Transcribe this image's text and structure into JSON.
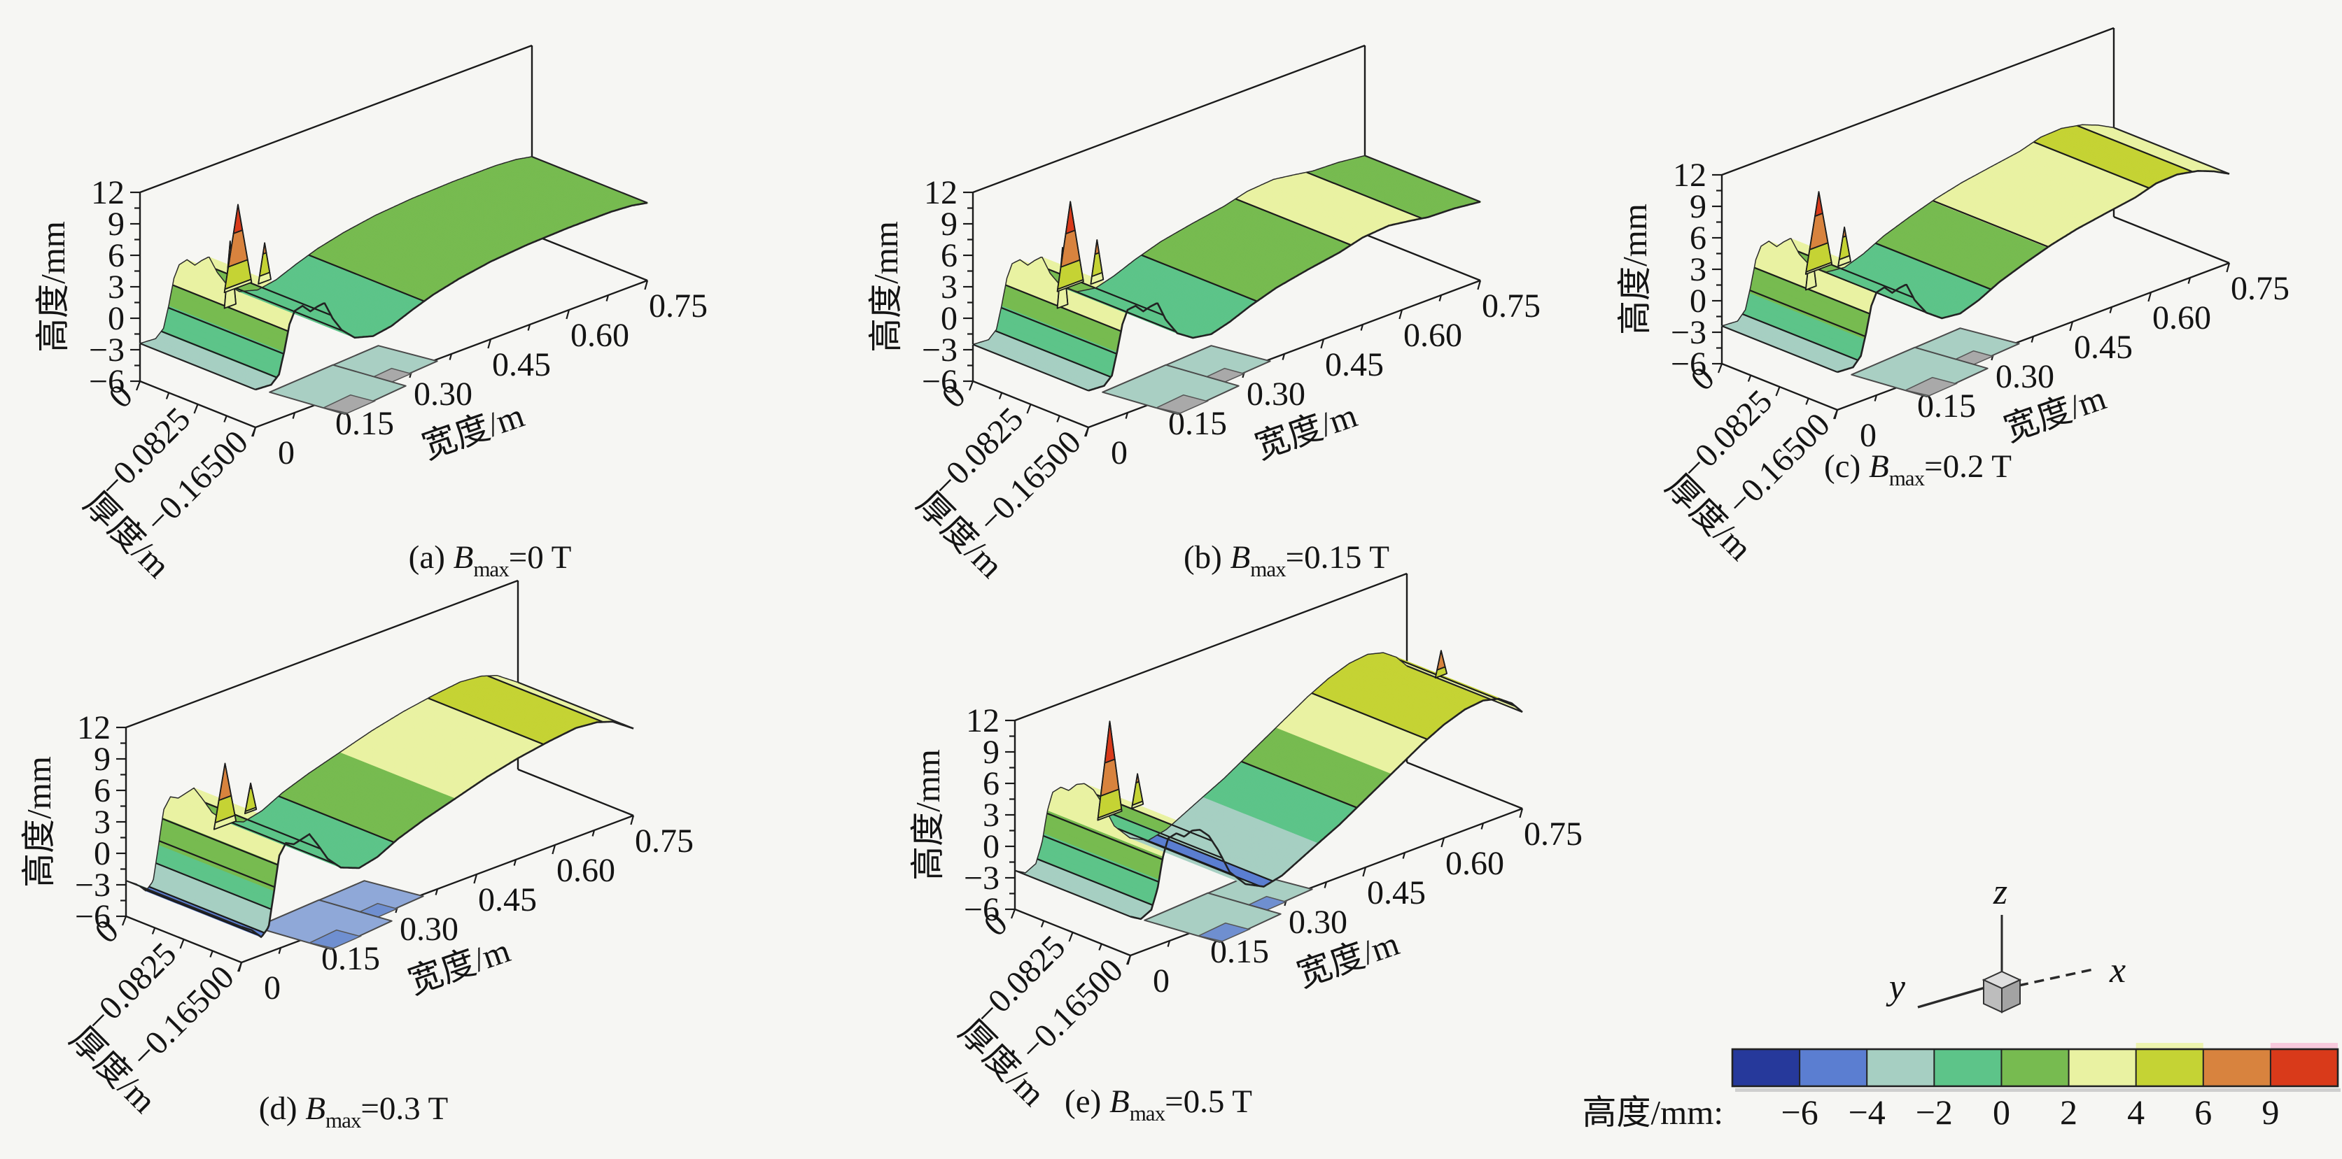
{
  "figure": {
    "background": "#f6f6f3",
    "axes": {
      "z_label": "高度/mm",
      "x_label": "宽度/m",
      "y_label": "厚度/m",
      "z_ticks": [
        "12",
        "9",
        "6",
        "3",
        "0",
        "−3",
        "−6"
      ],
      "x_ticks": [
        "0",
        "0.15",
        "0.30",
        "0.45",
        "0.60",
        "0.75"
      ],
      "y_ticks": [
        "0",
        "−0.0825",
        "−0.16500"
      ]
    }
  },
  "captions": [
    {
      "prefix": "(a) ",
      "symbol": "B",
      "sub": "max",
      "suffix": "=0 T"
    },
    {
      "prefix": "(b) ",
      "symbol": "B",
      "sub": "max",
      "suffix": "=0.15 T"
    },
    {
      "prefix": "(c) ",
      "symbol": "B",
      "sub": "max",
      "suffix": "=0.2 T"
    },
    {
      "prefix": "(d) ",
      "symbol": "B",
      "sub": "max",
      "suffix": "=0.3 T"
    },
    {
      "prefix": "(e) ",
      "symbol": "B",
      "sub": "max",
      "suffix": "=0.5 T"
    }
  ],
  "legend": {
    "title": "高度/mm:",
    "boundaries": [
      "−6",
      "−4",
      "−2",
      "0",
      "2",
      "4",
      "6",
      "9"
    ],
    "colors": [
      "#26399b",
      "#5b7ed1",
      "#a6cfc2",
      "#5dc489",
      "#77bb50",
      "#e9f2a2",
      "#c5d334",
      "#d8833e",
      "#d93a1a"
    ],
    "accents": [
      {
        "segment": 6,
        "color": "#edf4ae"
      },
      {
        "segment": 8,
        "color": "#f7c9dc"
      }
    ]
  },
  "triad": {
    "x": "x",
    "y": "y",
    "z": "z"
  },
  "chart_data": [
    {
      "type": "3d-surface",
      "id": "a",
      "title": "(a) Bmax=0 T",
      "bmax_T": 0,
      "xlabel": "宽度/m",
      "ylabel": "厚度/m",
      "zlabel": "高度/mm",
      "x_range_m": [
        0,
        0.75
      ],
      "y_range_m": [
        -0.165,
        0
      ],
      "z_range_mm": [
        -6,
        12
      ],
      "contour_levels_mm": [
        -6,
        -4,
        -2,
        0,
        2,
        4,
        6,
        9
      ],
      "surface_profile": [
        [
          0,
          -2.4
        ],
        [
          0.03,
          -2.5
        ],
        [
          0.045,
          -1.8
        ],
        [
          0.055,
          0.2
        ],
        [
          0.065,
          2.6
        ],
        [
          0.075,
          3.7
        ],
        [
          0.09,
          3.9
        ],
        [
          0.105,
          3.1
        ],
        [
          0.118,
          3.3
        ],
        [
          0.132,
          3.4
        ],
        [
          0.148,
          1.6
        ],
        [
          0.165,
          0.2
        ],
        [
          0.19,
          -1.0
        ],
        [
          0.225,
          -1.5
        ],
        [
          0.26,
          -1.2
        ],
        [
          0.3,
          -0.4
        ],
        [
          0.34,
          0.3
        ],
        [
          0.39,
          0.9
        ],
        [
          0.45,
          1.4
        ],
        [
          0.52,
          1.7
        ],
        [
          0.6,
          1.85
        ],
        [
          0.68,
          1.85
        ],
        [
          0.72,
          1.7
        ],
        [
          0.75,
          1.4
        ]
      ],
      "peaks": [
        {
          "x_m": 0.062,
          "base_mm": 2.2,
          "peak_mm": 8.4,
          "half_width_m": 0.011
        },
        {
          "x_m": 0.077,
          "base_mm": 3.7,
          "peak_mm": 11.6,
          "half_width_m": 0.026
        },
        {
          "x_m": 0.128,
          "base_mm": 3.3,
          "peak_mm": 7.0,
          "half_width_m": 0.012
        }
      ],
      "side_flap_colors": {
        "fill": "#a9cfc3",
        "pad": "#a9a9a9"
      }
    },
    {
      "type": "3d-surface",
      "id": "b",
      "title": "(b) Bmax=0.15 T",
      "bmax_T": 0.15,
      "xlabel": "宽度/m",
      "ylabel": "厚度/m",
      "zlabel": "高度/mm",
      "x_range_m": [
        0,
        0.75
      ],
      "y_range_m": [
        -0.165,
        0
      ],
      "z_range_mm": [
        -6,
        12
      ],
      "contour_levels_mm": [
        -6,
        -4,
        -2,
        0,
        2,
        4,
        6,
        9
      ],
      "surface_profile": [
        [
          0,
          -2.5
        ],
        [
          0.03,
          -2.6
        ],
        [
          0.045,
          -1.9
        ],
        [
          0.055,
          0.2
        ],
        [
          0.065,
          2.6
        ],
        [
          0.075,
          3.8
        ],
        [
          0.09,
          3.9
        ],
        [
          0.105,
          3.1
        ],
        [
          0.118,
          3.3
        ],
        [
          0.132,
          3.4
        ],
        [
          0.148,
          1.5
        ],
        [
          0.17,
          -0.2
        ],
        [
          0.2,
          -1.2
        ],
        [
          0.235,
          -1.5
        ],
        [
          0.27,
          -1.0
        ],
        [
          0.31,
          -0.2
        ],
        [
          0.36,
          0.6
        ],
        [
          0.42,
          1.2
        ],
        [
          0.48,
          1.7
        ],
        [
          0.525,
          2.3
        ],
        [
          0.575,
          2.5
        ],
        [
          0.615,
          2.2
        ],
        [
          0.65,
          1.9
        ],
        [
          0.7,
          1.8
        ],
        [
          0.75,
          1.5
        ]
      ],
      "peaks": [
        {
          "x_m": 0.061,
          "base_mm": 2.2,
          "peak_mm": 7.8,
          "half_width_m": 0.01
        },
        {
          "x_m": 0.076,
          "base_mm": 3.8,
          "peak_mm": 11.9,
          "half_width_m": 0.025
        },
        {
          "x_m": 0.127,
          "base_mm": 3.3,
          "peak_mm": 7.3,
          "half_width_m": 0.012
        }
      ],
      "side_flap_colors": {
        "fill": "#a9cfc3",
        "pad": "#a9a9a9"
      }
    },
    {
      "type": "3d-surface",
      "id": "c",
      "title": "(c) Bmax=0.2 T",
      "bmax_T": 0.2,
      "xlabel": "宽度/m",
      "ylabel": "厚度/m",
      "zlabel": "高度/mm",
      "x_range_m": [
        0,
        0.75
      ],
      "y_range_m": [
        -0.165,
        0
      ],
      "z_range_mm": [
        -6,
        12
      ],
      "contour_levels_mm": [
        -6,
        -4,
        -2,
        0,
        2,
        4,
        6,
        9
      ],
      "surface_profile": [
        [
          0,
          -2.4
        ],
        [
          0.03,
          -2.5
        ],
        [
          0.045,
          -1.7
        ],
        [
          0.055,
          0.3
        ],
        [
          0.065,
          2.7
        ],
        [
          0.075,
          3.8
        ],
        [
          0.09,
          4.0
        ],
        [
          0.105,
          3.2
        ],
        [
          0.118,
          3.4
        ],
        [
          0.132,
          3.5
        ],
        [
          0.148,
          1.7
        ],
        [
          0.17,
          0.1
        ],
        [
          0.2,
          -1.0
        ],
        [
          0.235,
          -1.2
        ],
        [
          0.27,
          -0.6
        ],
        [
          0.31,
          0.4
        ],
        [
          0.36,
          1.3
        ],
        [
          0.41,
          2.1
        ],
        [
          0.46,
          2.7
        ],
        [
          0.52,
          3.2
        ],
        [
          0.57,
          3.6
        ],
        [
          0.61,
          4.2
        ],
        [
          0.65,
          4.3
        ],
        [
          0.69,
          3.9
        ],
        [
          0.72,
          3.3
        ],
        [
          0.75,
          2.5
        ]
      ],
      "peaks": [
        {
          "x_m": 0.06,
          "base_mm": 2.3,
          "peak_mm": 6.6,
          "half_width_m": 0.01
        },
        {
          "x_m": 0.075,
          "base_mm": 3.8,
          "peak_mm": 11.2,
          "half_width_m": 0.025
        },
        {
          "x_m": 0.124,
          "base_mm": 3.4,
          "peak_mm": 6.9,
          "half_width_m": 0.012
        }
      ],
      "side_flap_colors": {
        "fill": "#a9cfc3",
        "pad": "#a9a9a9"
      }
    },
    {
      "type": "3d-surface",
      "id": "d",
      "title": "(d) Bmax=0.3 T",
      "bmax_T": 0.3,
      "xlabel": "宽度/m",
      "ylabel": "厚度/m",
      "zlabel": "高度/mm",
      "x_range_m": [
        0,
        0.75
      ],
      "y_range_m": [
        -0.165,
        0
      ],
      "z_range_mm": [
        -6,
        12
      ],
      "contour_levels_mm": [
        -6,
        -4,
        -2,
        0,
        2,
        4,
        6,
        9
      ],
      "surface_profile": [
        [
          0,
          -2.6
        ],
        [
          0.02,
          -3.3
        ],
        [
          0.038,
          -4.3
        ],
        [
          0.052,
          -3.6
        ],
        [
          0.062,
          -0.5
        ],
        [
          0.072,
          2.8
        ],
        [
          0.085,
          3.8
        ],
        [
          0.1,
          3.4
        ],
        [
          0.115,
          3.6
        ],
        [
          0.13,
          3.8
        ],
        [
          0.147,
          2.4
        ],
        [
          0.165,
          0.8
        ],
        [
          0.19,
          -0.5
        ],
        [
          0.225,
          -1.2
        ],
        [
          0.26,
          -0.8
        ],
        [
          0.3,
          0.2
        ],
        [
          0.35,
          1.1
        ],
        [
          0.41,
          2.0
        ],
        [
          0.47,
          2.9
        ],
        [
          0.53,
          3.6
        ],
        [
          0.59,
          4.1
        ],
        [
          0.64,
          4.4
        ],
        [
          0.68,
          4.2
        ],
        [
          0.71,
          3.7
        ],
        [
          0.73,
          3.0
        ],
        [
          0.75,
          2.3
        ]
      ],
      "peaks": [
        {
          "x_m": 0.079,
          "base_mm": 3.4,
          "peak_mm": 9.3,
          "half_width_m": 0.021
        },
        {
          "x_m": 0.128,
          "base_mm": 3.8,
          "peak_mm": 6.5,
          "half_width_m": 0.011
        }
      ],
      "side_flap_colors": {
        "fill": "#8fa8d8",
        "pad": "#6f8fd0"
      }
    },
    {
      "type": "3d-surface",
      "id": "e",
      "title": "(e) Bmax=0.5 T",
      "bmax_T": 0.5,
      "xlabel": "宽度/m",
      "ylabel": "厚度/m",
      "zlabel": "高度/mm",
      "x_range_m": [
        0,
        0.75
      ],
      "y_range_m": [
        -0.165,
        0
      ],
      "z_range_mm": [
        -6,
        12
      ],
      "contour_levels_mm": [
        -6,
        -4,
        -2,
        0,
        2,
        4,
        6,
        9
      ],
      "surface_profile": [
        [
          0,
          -2.3
        ],
        [
          0.02,
          -2.9
        ],
        [
          0.04,
          -2.4
        ],
        [
          0.052,
          -0.6
        ],
        [
          0.062,
          2.2
        ],
        [
          0.072,
          3.8
        ],
        [
          0.088,
          4.0
        ],
        [
          0.103,
          3.4
        ],
        [
          0.118,
          3.7
        ],
        [
          0.133,
          3.5
        ],
        [
          0.15,
          2.6
        ],
        [
          0.168,
          0.9
        ],
        [
          0.19,
          -1.6
        ],
        [
          0.22,
          -3.3
        ],
        [
          0.255,
          -4.2
        ],
        [
          0.29,
          -3.8
        ],
        [
          0.325,
          -2.9
        ],
        [
          0.36,
          -2.0
        ],
        [
          0.4,
          -1.0
        ],
        [
          0.44,
          0.2
        ],
        [
          0.48,
          1.4
        ],
        [
          0.52,
          2.6
        ],
        [
          0.56,
          3.8
        ],
        [
          0.6,
          4.8
        ],
        [
          0.64,
          5.5
        ],
        [
          0.675,
          5.7
        ],
        [
          0.705,
          5.3
        ],
        [
          0.73,
          4.4
        ],
        [
          0.75,
          3.2
        ]
      ],
      "peaks": [
        {
          "x_m": 0.071,
          "base_mm": 3.8,
          "peak_mm": 12.8,
          "half_width_m": 0.023
        },
        {
          "x_m": 0.124,
          "base_mm": 3.7,
          "peak_mm": 6.8,
          "half_width_m": 0.011
        },
        {
          "x_m": 0.705,
          "base_mm": 5.3,
          "peak_mm": 7.7,
          "half_width_m": 0.011
        }
      ],
      "side_flap_colors": {
        "fill": "#a9cfc3",
        "pad": "#6f8fd0"
      }
    }
  ]
}
